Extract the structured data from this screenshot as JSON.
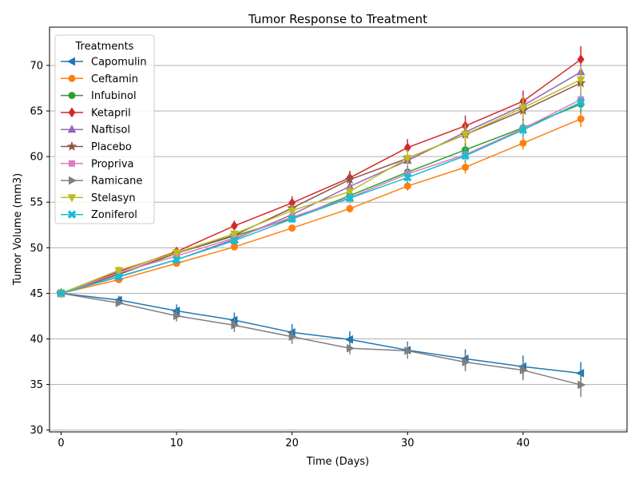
{
  "chart_data": {
    "type": "line",
    "title": "Tumor Response to Treatment",
    "xlabel": "Time (Days)",
    "ylabel": "Tumor Volume (mm3)",
    "xlim": [
      -1,
      49
    ],
    "ylim": [
      29.8,
      74.2
    ],
    "xticks": [
      0,
      10,
      20,
      30,
      40
    ],
    "yticks": [
      30,
      35,
      40,
      45,
      50,
      55,
      60,
      65,
      70
    ],
    "grid": "horizontal",
    "legend_title": "Treatments",
    "legend_position": "top-left",
    "x": [
      0,
      5,
      10,
      15,
      20,
      25,
      30,
      35,
      40,
      45
    ],
    "series": [
      {
        "name": "Capomulin",
        "color": "#1f77b4",
        "marker": "triangle-left",
        "values": [
          45.0,
          44.27,
          43.08,
          42.06,
          40.72,
          39.94,
          38.77,
          37.82,
          36.96,
          36.24
        ],
        "errors": [
          0.0,
          0.45,
          0.7,
          0.84,
          0.91,
          0.89,
          0.93,
          1.05,
          1.22,
          1.22
        ]
      },
      {
        "name": "Ceftamin",
        "color": "#ff7f0e",
        "marker": "circle",
        "values": [
          45.0,
          46.5,
          48.29,
          50.09,
          52.16,
          54.29,
          56.77,
          58.83,
          61.47,
          64.13
        ],
        "errors": [
          0.0,
          0.16,
          0.24,
          0.33,
          0.36,
          0.44,
          0.49,
          0.69,
          0.71,
          0.9
        ]
      },
      {
        "name": "Infubinol",
        "color": "#2ca02c",
        "marker": "circle",
        "values": [
          45.0,
          47.06,
          49.4,
          51.3,
          53.2,
          55.72,
          58.3,
          60.74,
          63.16,
          65.76
        ],
        "errors": [
          0.0,
          0.24,
          0.28,
          0.36,
          0.44,
          0.54,
          0.6,
          0.81,
          0.83,
          0.98
        ]
      },
      {
        "name": "Ketapril",
        "color": "#d62728",
        "marker": "diamond",
        "values": [
          45.0,
          47.39,
          49.58,
          52.4,
          54.92,
          57.68,
          60.99,
          63.37,
          66.07,
          70.66
        ],
        "errors": [
          0.0,
          0.26,
          0.36,
          0.58,
          0.73,
          0.76,
          0.93,
          1.13,
          1.16,
          1.45
        ]
      },
      {
        "name": "Naftisol",
        "color": "#9467bd",
        "marker": "triangle-up",
        "values": [
          45.0,
          46.8,
          48.69,
          50.93,
          53.64,
          56.73,
          59.56,
          62.69,
          65.6,
          69.27
        ],
        "errors": [
          0.0,
          0.2,
          0.37,
          0.53,
          0.6,
          0.8,
          0.88,
          1.0,
          1.0,
          1.02
        ]
      },
      {
        "name": "Placebo",
        "color": "#8c564b",
        "marker": "star",
        "values": [
          45.0,
          47.13,
          49.42,
          51.36,
          54.36,
          57.48,
          59.81,
          62.42,
          65.05,
          68.08
        ],
        "errors": [
          0.0,
          0.22,
          0.4,
          0.61,
          0.84,
          0.88,
          0.93,
          1.12,
          1.16,
          1.35
        ]
      },
      {
        "name": "Propriva",
        "color": "#e377c2",
        "marker": "square",
        "values": [
          45.0,
          47.25,
          49.1,
          51.07,
          53.35,
          55.5,
          58.1,
          60.22,
          63.06,
          66.26
        ],
        "errors": [
          0.0,
          0.23,
          0.38,
          0.46,
          0.48,
          0.52,
          0.62,
          0.74,
          0.9,
          0.94
        ]
      },
      {
        "name": "Ramicane",
        "color": "#7f7f7f",
        "marker": "triangle-right",
        "values": [
          45.0,
          43.94,
          42.53,
          41.5,
          40.24,
          38.97,
          38.7,
          37.45,
          36.57,
          34.96
        ],
        "errors": [
          0.0,
          0.26,
          0.62,
          0.75,
          0.78,
          0.65,
          0.85,
          1.0,
          1.12,
          1.33
        ]
      },
      {
        "name": "Stelasyn",
        "color": "#bcbd22",
        "marker": "triangle-down",
        "values": [
          45.0,
          47.53,
          49.46,
          51.53,
          54.07,
          56.17,
          59.83,
          62.44,
          65.36,
          68.44
        ],
        "errors": [
          0.0,
          0.24,
          0.43,
          0.49,
          0.62,
          0.74,
          0.9,
          1.05,
          1.23,
          1.49
        ]
      },
      {
        "name": "Zoniferol",
        "color": "#17becf",
        "marker": "x-filled",
        "values": [
          45.0,
          46.85,
          48.69,
          50.78,
          53.17,
          55.43,
          57.71,
          60.09,
          62.92,
          65.96
        ],
        "errors": [
          0.0,
          0.19,
          0.26,
          0.36,
          0.44,
          0.53,
          0.6,
          0.72,
          0.77,
          0.79
        ]
      }
    ]
  }
}
